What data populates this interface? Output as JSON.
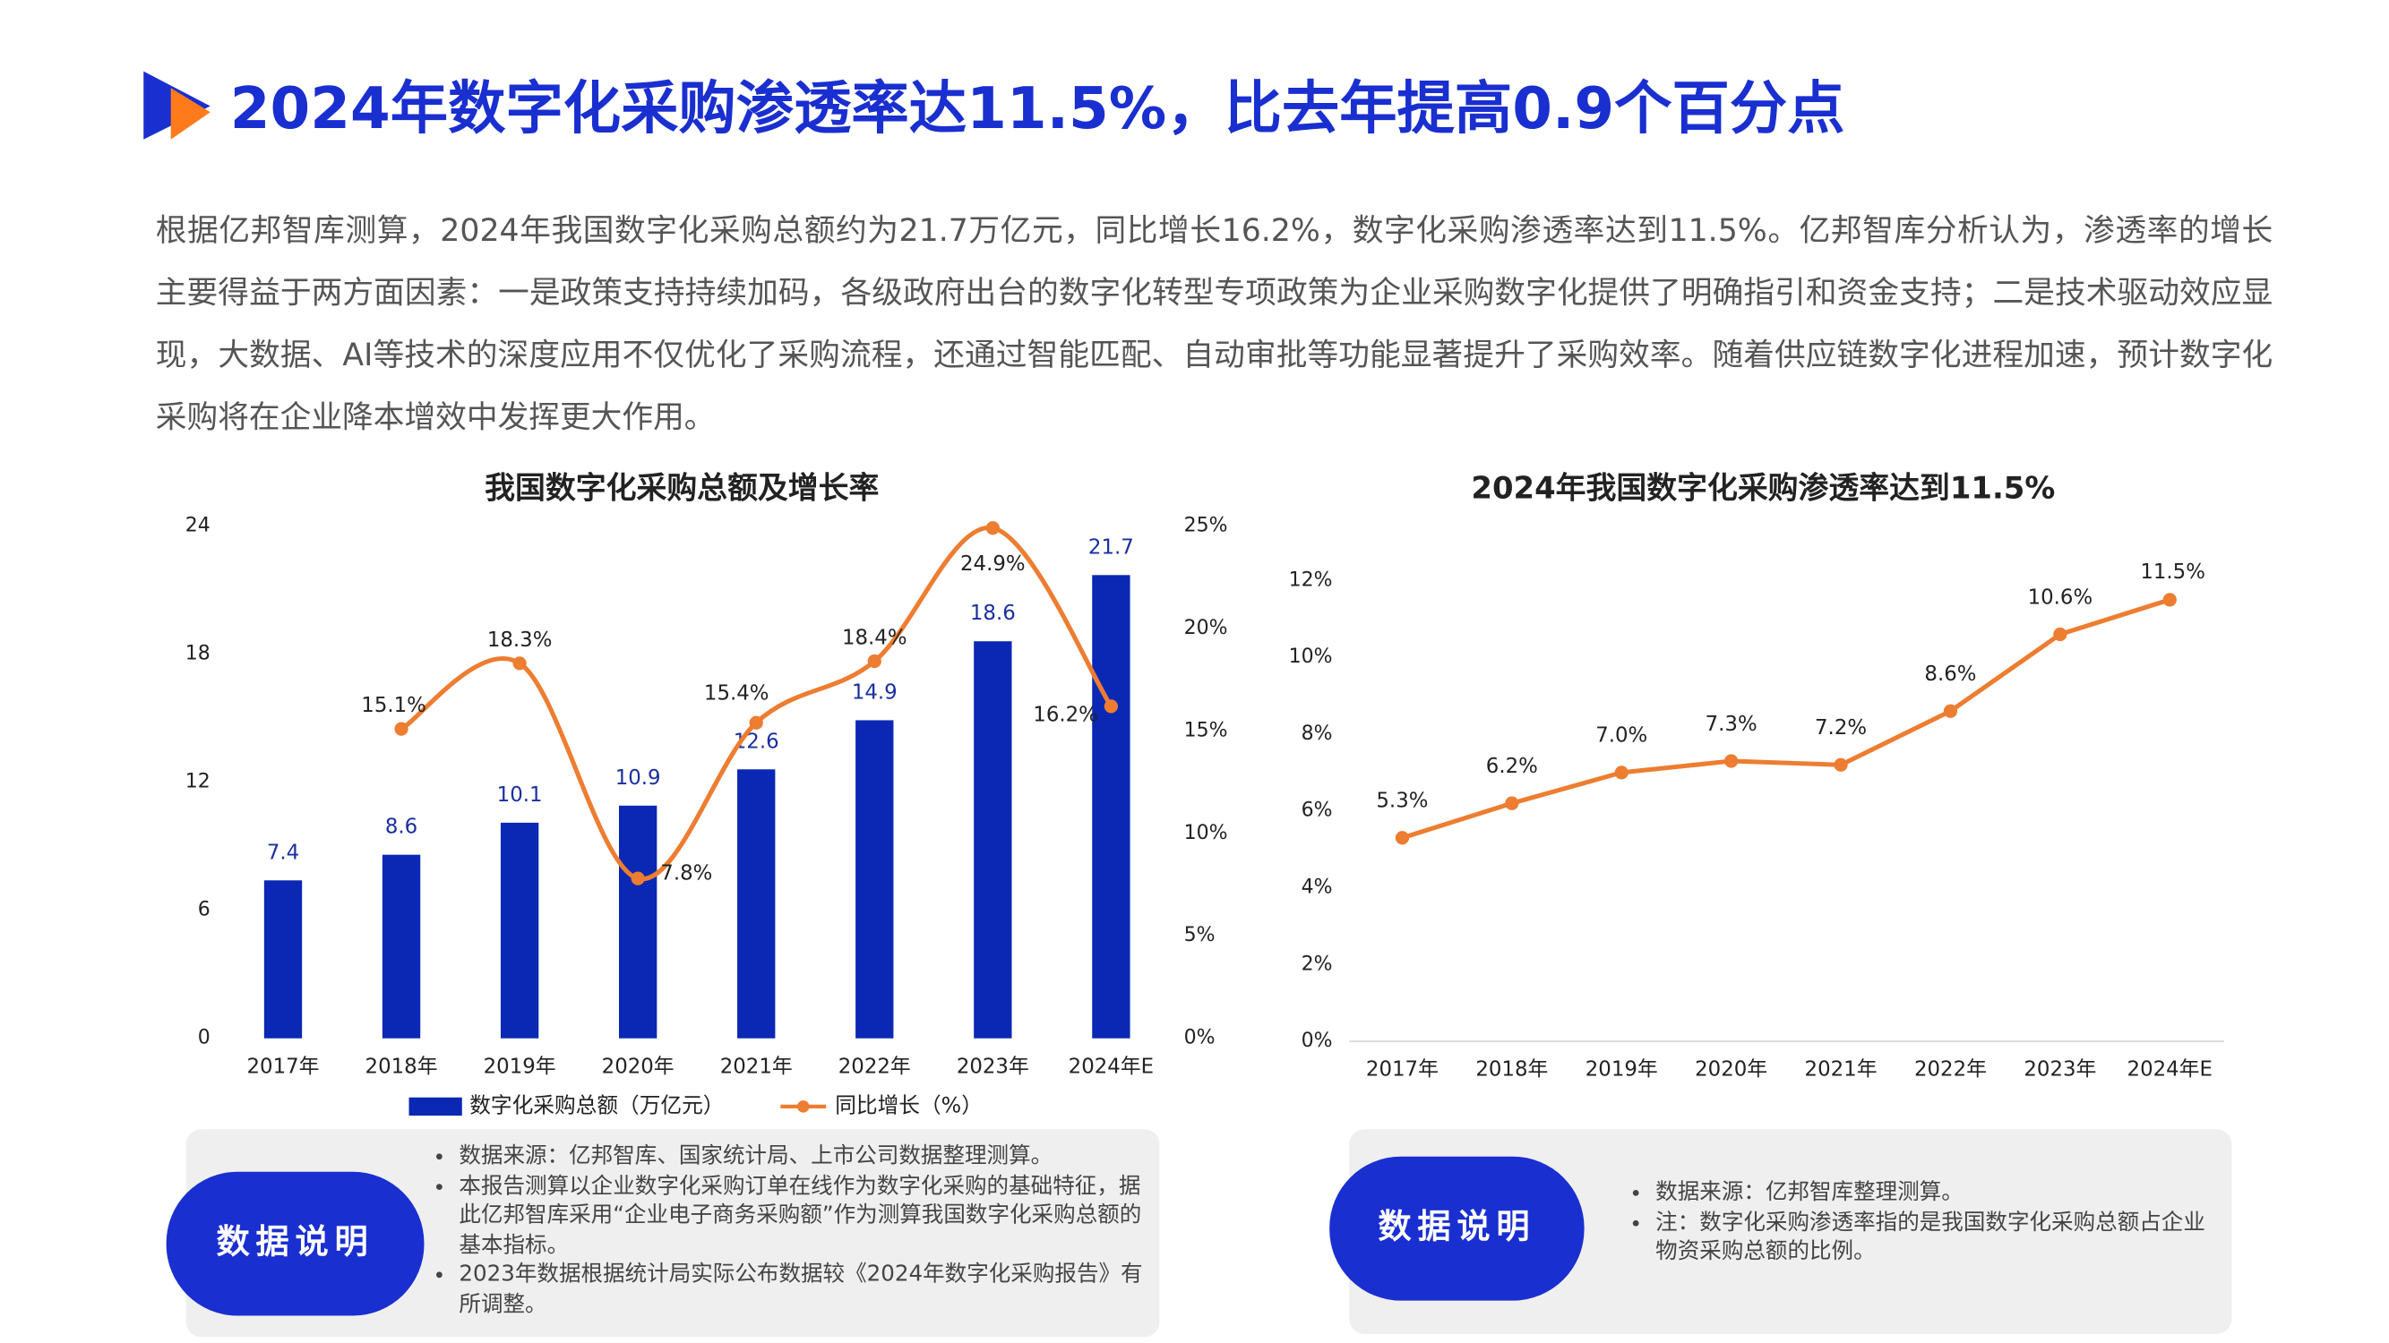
{
  "header": {
    "title": "2024年数字化采购渗透率达11.5%，比去年提高0.9个百分点"
  },
  "paragraph": "根据亿邦智库测算，2024年我国数字化采购总额约为21.7万亿元，同比增长16.2%，数字化采购渗透率达到11.5%。亿邦智库分析认为，渗透率的增长主要得益于两方面因素：一是政策支持持续加码，各级政府出台的数字化转型专项政策为企业采购数字化提供了明确指引和资金支持；二是技术驱动效应显现，大数据、AI等技术的深度应用不仅优化了采购流程，还通过智能匹配、自动审批等功能显著提升了采购效率。随着供应链数字化进程加速，预计数字化采购将在企业降本增效中发挥更大作用。",
  "chart_data": [
    {
      "type": "bar_line",
      "title": "我国数字化采购总额及增长率",
      "categories": [
        "2017年",
        "2018年",
        "2019年",
        "2020年",
        "2021年",
        "2022年",
        "2023年",
        "2024年E"
      ],
      "series": [
        {
          "name": "数字化采购总额（万亿元）",
          "color": "#0a28b4",
          "type": "bar",
          "values": [
            7.4,
            8.6,
            10.1,
            10.9,
            12.6,
            14.9,
            18.6,
            21.7
          ]
        },
        {
          "name": "同比增长（%）",
          "color": "#ed7d31",
          "type": "line",
          "axis": "y2",
          "values": [
            null,
            15.1,
            18.3,
            7.8,
            15.4,
            18.4,
            24.9,
            16.2
          ],
          "value_labels": [
            null,
            "15.1%",
            "18.3%",
            "7.8%",
            "15.4%",
            "18.4%",
            "24.9%",
            "16.2%"
          ]
        }
      ],
      "ylim": [
        0,
        24
      ],
      "yticks": [
        0,
        6,
        12,
        18,
        24
      ],
      "y2lim": [
        0,
        25
      ],
      "y2ticks": [
        {
          "value": 0,
          "label": "0%"
        },
        {
          "value": 5,
          "label": "5%"
        },
        {
          "value": 10,
          "label": "10%"
        },
        {
          "value": 15,
          "label": "15%"
        },
        {
          "value": 20,
          "label": "20%"
        },
        {
          "value": 25,
          "label": "25%"
        }
      ],
      "legend": "bottom",
      "notes_title": "数据说明",
      "notes": [
        "数据来源：亿邦智库、国家统计局、上市公司数据整理测算。",
        "本报告测算以企业数字化采购订单在线作为数字化采购的基础特征，据此亿邦智库采用“企业电子商务采购额”作为测算我国数字化采购总额的基本指标。",
        "2023年数据根据统计局实际公布数据较《2024年数字化采购报告》有所调整。"
      ]
    },
    {
      "type": "line",
      "title": "2024年我国数字化采购渗透率达到11.5%",
      "categories": [
        "2017年",
        "2018年",
        "2019年",
        "2020年",
        "2021年",
        "2022年",
        "2023年",
        "2024年E"
      ],
      "series": [
        {
          "color": "#ed7d31",
          "values": [
            5.3,
            6.2,
            7.0,
            7.3,
            7.2,
            8.6,
            10.6,
            11.5
          ],
          "value_labels": [
            "5.3%",
            "6.2%",
            "7.0%",
            "7.3%",
            "7.2%",
            "8.6%",
            "10.6%",
            "11.5%"
          ]
        }
      ],
      "ylim": [
        0,
        12
      ],
      "yticks": [
        {
          "value": 0,
          "label": "0%"
        },
        {
          "value": 2,
          "label": "2%"
        },
        {
          "value": 4,
          "label": "4%"
        },
        {
          "value": 6,
          "label": "6%"
        },
        {
          "value": 8,
          "label": "8%"
        },
        {
          "value": 10,
          "label": "10%"
        },
        {
          "value": 12,
          "label": "12%"
        }
      ],
      "notes_title": "数据说明",
      "notes": [
        "数据来源：亿邦智库整理测算。",
        "注：数字化采购渗透率指的是我国数字化采购总额占企业物资采购总额的比例。"
      ]
    }
  ]
}
